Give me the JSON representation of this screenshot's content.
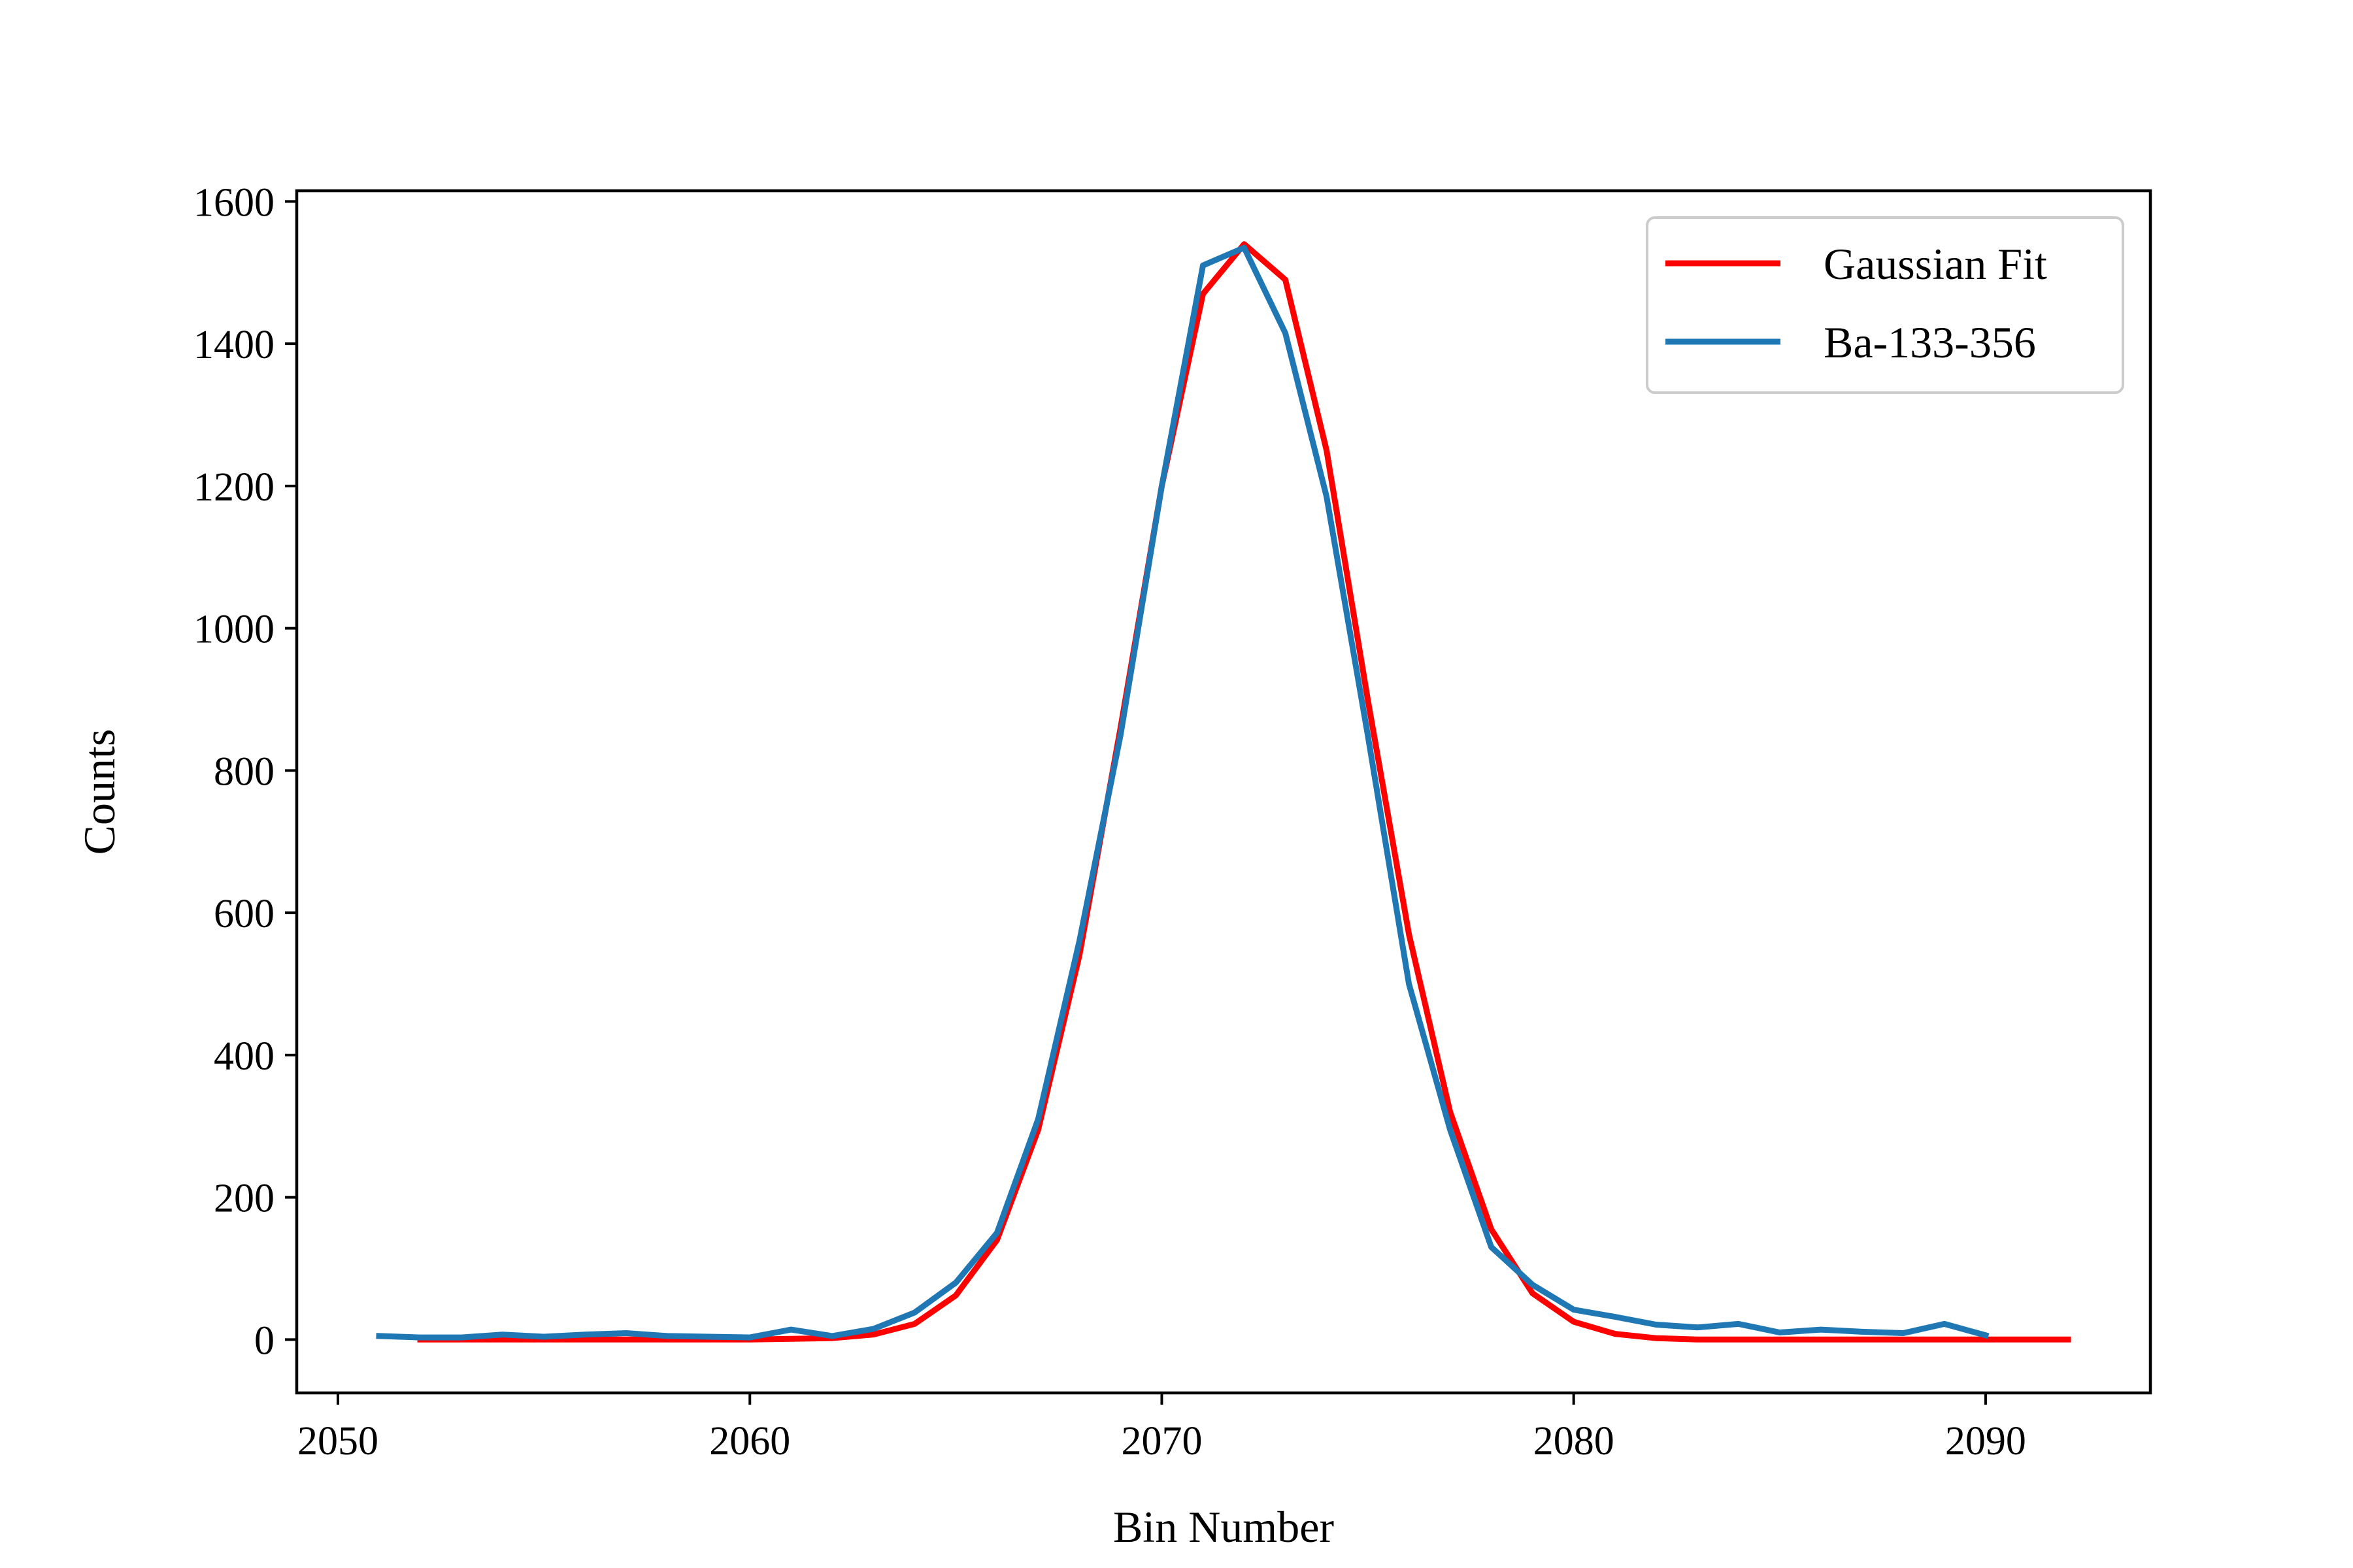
{
  "chart_data": {
    "type": "line",
    "title": "",
    "xlabel": "Bin Number",
    "ylabel": "Counts",
    "xlim": [
      2049,
      2094
    ],
    "ylim": [
      -75,
      1615
    ],
    "xticks": [
      2050,
      2060,
      2070,
      2080,
      2090
    ],
    "yticks": [
      0,
      200,
      400,
      600,
      800,
      1000,
      1200,
      1400,
      1600
    ],
    "grid": false,
    "legend_position": "top-right",
    "series": [
      {
        "name": "Gaussian Fit",
        "color": "#ff0000",
        "x": [
          2052,
          2053,
          2054,
          2055,
          2056,
          2057,
          2058,
          2059,
          2060,
          2061,
          2062,
          2063,
          2064,
          2065,
          2066,
          2067,
          2068,
          2069,
          2070,
          2071,
          2072,
          2073,
          2074,
          2075,
          2076,
          2077,
          2078,
          2079,
          2080,
          2081,
          2082,
          2083,
          2084,
          2085,
          2086,
          2087,
          2088,
          2089,
          2090,
          2091,
          2092
        ],
        "y": [
          0,
          0,
          0,
          0,
          0,
          0,
          0,
          0,
          0,
          1,
          2,
          7,
          22,
          62,
          140,
          295,
          540,
          860,
          1200,
          1470,
          1540,
          1490,
          1250,
          900,
          570,
          320,
          155,
          65,
          25,
          8,
          2,
          0,
          0,
          0,
          0,
          0,
          0,
          0,
          0,
          0,
          0
        ]
      },
      {
        "name": "Ba-133-356",
        "color": "#1f77b4",
        "x": [
          2051,
          2052,
          2053,
          2054,
          2055,
          2056,
          2057,
          2058,
          2059,
          2060,
          2061,
          2062,
          2063,
          2064,
          2065,
          2066,
          2067,
          2068,
          2069,
          2070,
          2071,
          2072,
          2073,
          2074,
          2075,
          2076,
          2077,
          2078,
          2079,
          2080,
          2081,
          2082,
          2083,
          2084,
          2085,
          2086,
          2087,
          2088,
          2089,
          2090
        ],
        "y": [
          5,
          3,
          3,
          7,
          4,
          7,
          9,
          5,
          4,
          3,
          14,
          5,
          15,
          38,
          80,
          150,
          310,
          560,
          850,
          1200,
          1510,
          1535,
          1415,
          1185,
          850,
          500,
          295,
          130,
          77,
          42,
          32,
          21,
          17,
          22,
          10,
          14,
          11,
          9,
          22,
          6
        ]
      }
    ]
  }
}
